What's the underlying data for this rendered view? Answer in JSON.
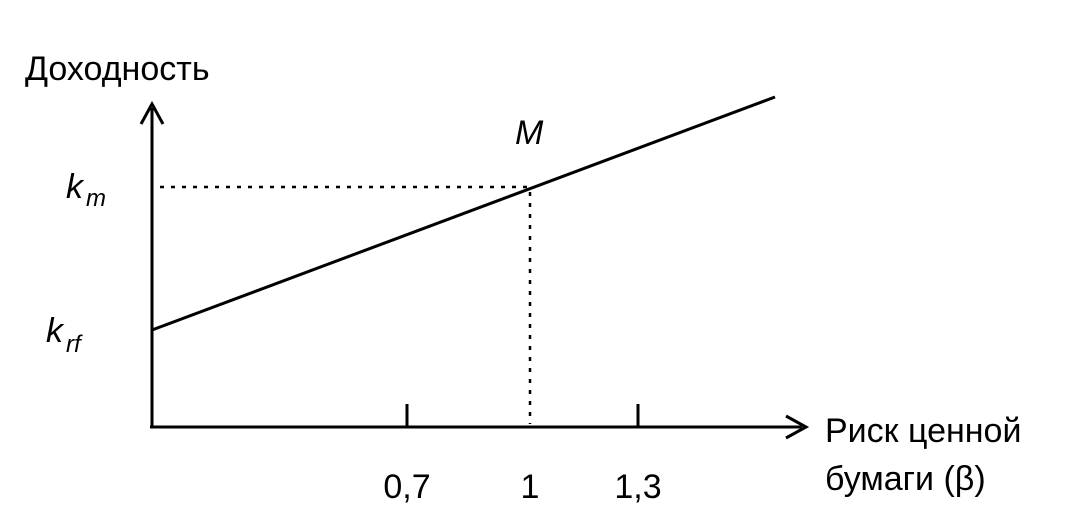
{
  "y_axis_label": "Доходность",
  "x_axis_label": [
    "Риск ценной",
    "бумаги (β)"
  ],
  "x_tick_labels": [
    "0,7",
    "1",
    "1,3"
  ],
  "point_label": "M",
  "y_labels": [
    {
      "main": "k",
      "sub": "m"
    },
    {
      "main": "k",
      "sub": "rf"
    }
  ]
}
